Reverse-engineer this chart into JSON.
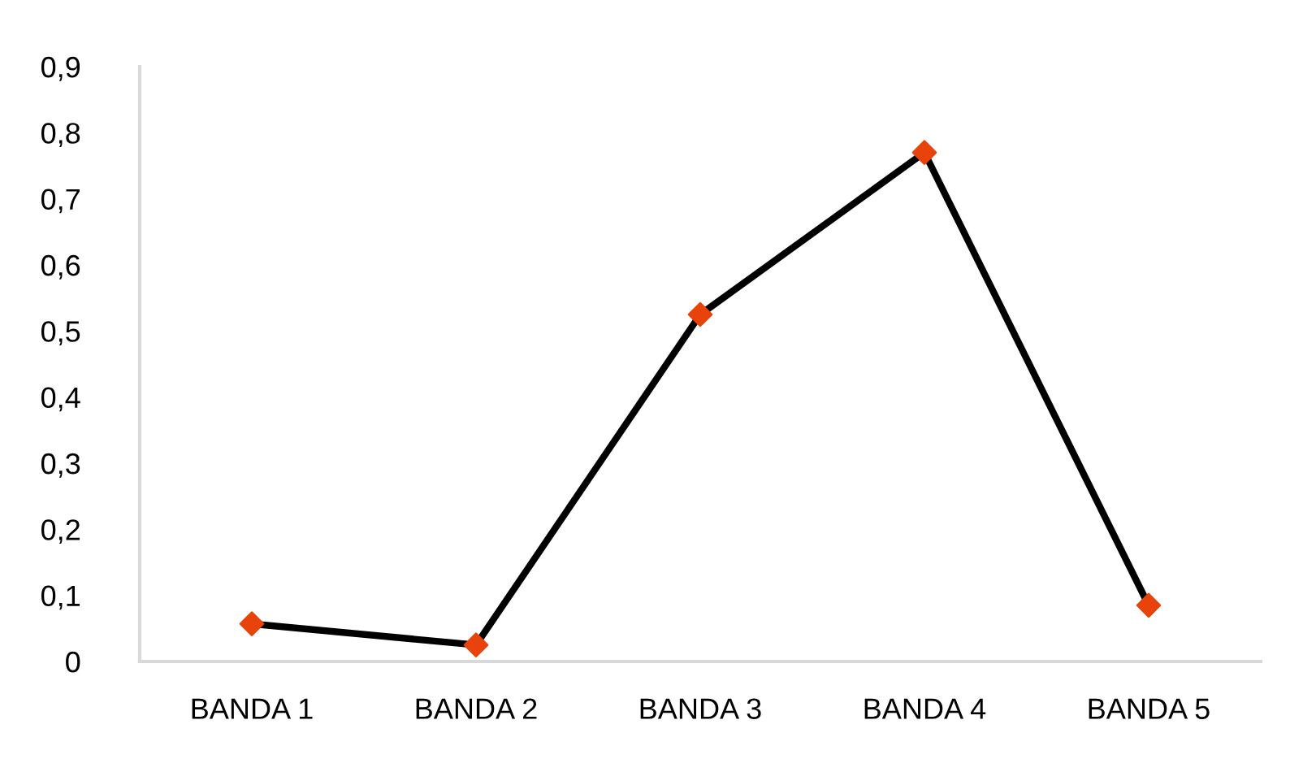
{
  "chart_data": {
    "type": "line",
    "categories": [
      "BANDA 1",
      "BANDA 2",
      "BANDA 3",
      "BANDA 4",
      "BANDA 5"
    ],
    "series": [
      {
        "color": "#000000",
        "colors": [
          "#e8430a",
          "#e8430a",
          "#e8430a",
          "#e8430a",
          "#e8430a"
        ],
        "values": [
          0.057,
          0.025,
          0.525,
          0.77,
          0.085
        ]
      }
    ],
    "ylim": [
      0,
      0.9
    ],
    "yticks": [
      {
        "value": 0,
        "label": "0"
      },
      {
        "value": 0.1,
        "label": "0,1"
      },
      {
        "value": 0.2,
        "label": "0,2"
      },
      {
        "value": 0.3,
        "label": "0,3"
      },
      {
        "value": 0.4,
        "label": "0,4"
      },
      {
        "value": 0.5,
        "label": "0,5"
      },
      {
        "value": 0.6,
        "label": "0,6"
      },
      {
        "value": 0.7,
        "label": "0,7"
      },
      {
        "value": 0.8,
        "label": "0,8"
      },
      {
        "value": 0.9,
        "label": "0,9"
      }
    ],
    "marker": "diamond",
    "line_style": "solid",
    "grid": false,
    "legend": false
  }
}
